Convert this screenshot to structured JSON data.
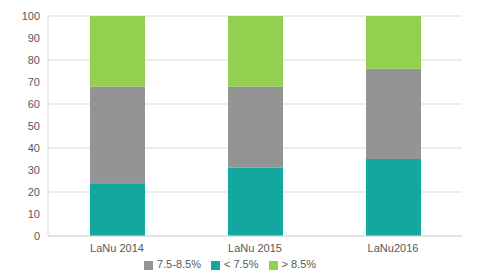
{
  "chart_data": {
    "type": "bar",
    "stacked": true,
    "grid": true,
    "legend": "bottom",
    "categories": [
      "LaNu 2014",
      "LaNu 2015",
      "LaNu2016"
    ],
    "series": [
      {
        "name": "< 7.5%",
        "color": "#12a8a0",
        "values": [
          24,
          31,
          35
        ]
      },
      {
        "name": "7.5-8.5%",
        "color": "#949494",
        "values": [
          44,
          37,
          41
        ]
      },
      {
        "name": "> 8.5%",
        "color": "#92d050",
        "values": [
          32,
          32,
          24
        ]
      }
    ],
    "ylim": [
      0,
      100
    ],
    "yticks": [
      0,
      10,
      20,
      30,
      40,
      50,
      60,
      70,
      80,
      90,
      100
    ]
  }
}
